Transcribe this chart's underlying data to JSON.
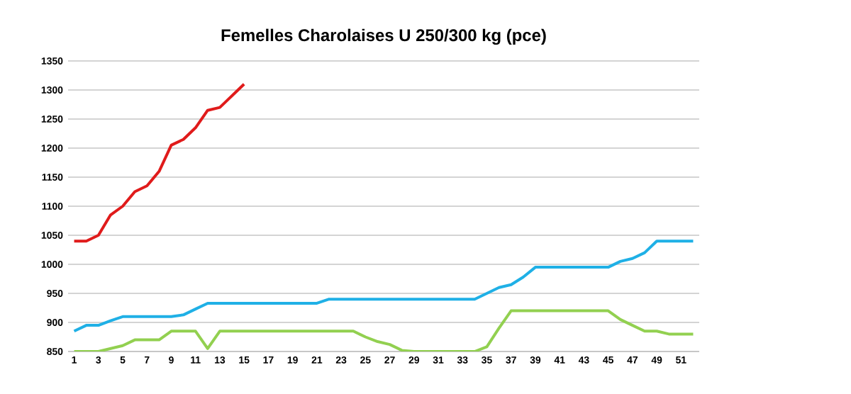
{
  "chart_data": {
    "type": "line",
    "title": "Femelles Charolaises U 250/300 kg (pce)",
    "categories": [
      "1",
      null,
      "3",
      null,
      "5",
      null,
      "7",
      null,
      "9",
      null,
      "11",
      null,
      "13",
      null,
      "15",
      null,
      "17",
      null,
      "19",
      null,
      "21",
      null,
      "23",
      null,
      "25",
      null,
      "27",
      null,
      "29",
      null,
      "31",
      null,
      "33",
      null,
      "35",
      null,
      "37",
      null,
      "39",
      null,
      "41",
      null,
      "43",
      null,
      "45",
      null,
      "47",
      null,
      "49",
      null,
      "51",
      null
    ],
    "series": [
      {
        "color": "#92d050",
        "values": [
          850,
          850,
          850,
          855,
          860,
          870,
          870,
          870,
          885,
          885,
          885,
          855,
          885,
          885,
          885,
          885,
          885,
          885,
          885,
          885,
          885,
          885,
          885,
          885,
          875,
          867,
          862,
          852,
          850,
          850,
          850,
          850,
          850,
          850,
          858,
          890,
          920,
          920,
          920,
          920,
          920,
          920,
          920,
          920,
          920,
          905,
          895,
          885,
          885,
          880,
          880,
          880
        ]
      },
      {
        "color": "#1fb0e6",
        "values": [
          885,
          895,
          895,
          903,
          910,
          910,
          910,
          910,
          910,
          913,
          923,
          933,
          933,
          933,
          933,
          933,
          933,
          933,
          933,
          933,
          933,
          940,
          940,
          940,
          940,
          940,
          940,
          940,
          940,
          940,
          940,
          940,
          940,
          940,
          950,
          960,
          965,
          978,
          995,
          995,
          995,
          995,
          995,
          995,
          995,
          1005,
          1010,
          1020,
          1040,
          1040,
          1040,
          1040
        ]
      },
      {
        "color": "#e01b1b",
        "values": [
          1040,
          1040,
          1050,
          1085,
          1100,
          1125,
          1135,
          1160,
          1205,
          1215,
          1235,
          1265,
          1270,
          1290,
          1310,
          null,
          null,
          null,
          null,
          null,
          null,
          null,
          null,
          null,
          null,
          null,
          null,
          null,
          null,
          null,
          null,
          null,
          null,
          null,
          null,
          null,
          null,
          null,
          null,
          null,
          null,
          null,
          null,
          null,
          null,
          null,
          null,
          null,
          null,
          null,
          null,
          null
        ]
      }
    ],
    "ylim": [
      850,
      1350
    ],
    "yticks": [
      850,
      900,
      950,
      1000,
      1050,
      1100,
      1150,
      1200,
      1250,
      1300,
      1350
    ],
    "grid": "y"
  }
}
